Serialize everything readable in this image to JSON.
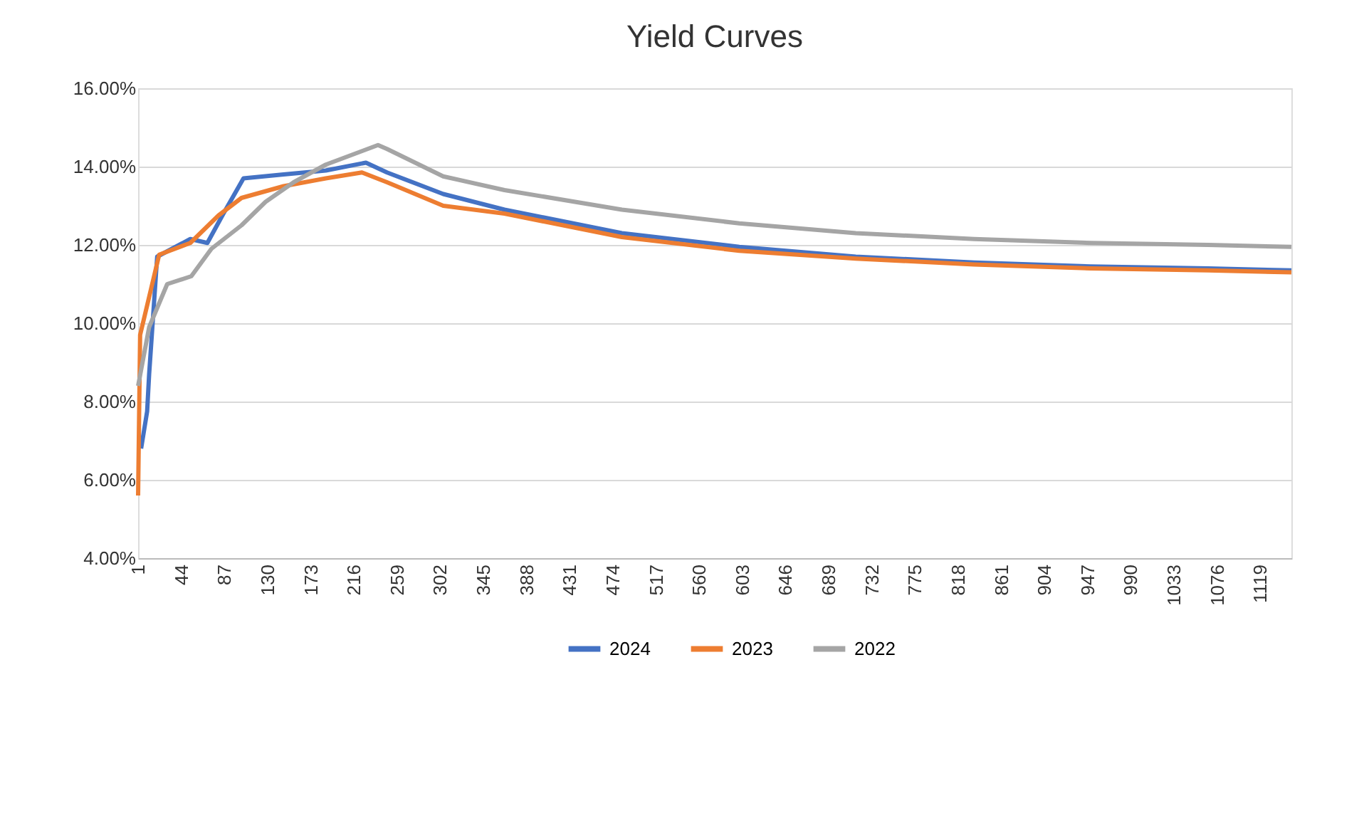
{
  "chart_data": {
    "type": "line",
    "title": "Yield Curves",
    "xlim": [
      1,
      1150
    ],
    "xticks": [
      1,
      44,
      87,
      130,
      173,
      216,
      259,
      302,
      345,
      388,
      431,
      474,
      517,
      560,
      603,
      646,
      689,
      732,
      775,
      818,
      861,
      904,
      947,
      990,
      1033,
      1076,
      1119
    ],
    "ylim": [
      4,
      16
    ],
    "yticks": [
      {
        "value": 4,
        "label": "4.00%"
      },
      {
        "value": 6,
        "label": "6.00%"
      },
      {
        "value": 8,
        "label": "8.00%"
      },
      {
        "value": 10,
        "label": "10.00%"
      },
      {
        "value": 12,
        "label": "12.00%"
      },
      {
        "value": 14,
        "label": "14.00%"
      },
      {
        "value": 16,
        "label": "16.00%"
      }
    ],
    "grid": "y",
    "legend": "bottom",
    "marker": "none",
    "line_style": "solid",
    "series": [
      {
        "name": "2024",
        "color": "#4472c4",
        "x": [
          4,
          10,
          12,
          20,
          53,
          70,
          86,
          106,
          146,
          188,
          228,
          249,
          305,
          366,
          483,
          600,
          716,
          834,
          950,
          1067,
          1150
        ],
        "values": [
          6.8,
          7.75,
          8.7,
          11.7,
          12.15,
          12.05,
          12.8,
          13.7,
          13.8,
          13.9,
          14.1,
          13.85,
          13.3,
          12.9,
          12.3,
          11.95,
          11.7,
          11.55,
          11.45,
          11.4,
          11.35
        ]
      },
      {
        "name": "2023",
        "color": "#ed7d31",
        "x": [
          1,
          3,
          22,
          53,
          81,
          104,
          146,
          188,
          224,
          249,
          305,
          366,
          483,
          600,
          716,
          834,
          950,
          1067,
          1150
        ],
        "values": [
          5.6,
          9.7,
          11.75,
          12.05,
          12.75,
          13.2,
          13.5,
          13.7,
          13.85,
          13.6,
          13.0,
          12.8,
          12.2,
          11.85,
          11.65,
          11.5,
          11.4,
          11.35,
          11.3
        ]
      },
      {
        "name": "2022",
        "color": "#a5a5a5",
        "x": [
          1,
          12,
          30,
          54,
          74,
          104,
          128,
          156,
          188,
          240,
          249,
          305,
          366,
          483,
          600,
          716,
          834,
          950,
          1067,
          1150
        ],
        "values": [
          8.4,
          9.9,
          11.0,
          11.2,
          11.9,
          12.5,
          13.1,
          13.6,
          14.05,
          14.55,
          14.45,
          13.75,
          13.4,
          12.9,
          12.55,
          12.3,
          12.15,
          12.05,
          12.0,
          11.95
        ]
      }
    ]
  }
}
